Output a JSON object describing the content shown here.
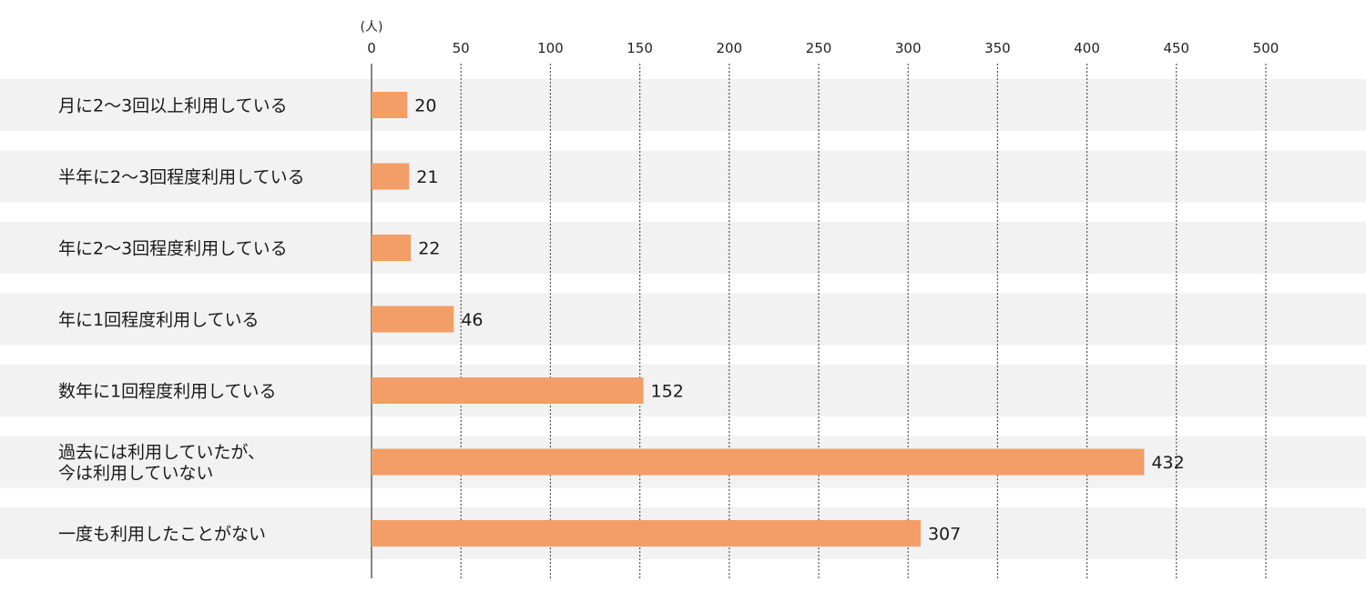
{
  "chart_data": {
    "type": "bar",
    "orientation": "horizontal",
    "unit_label": "(人)",
    "xlim": [
      0,
      500
    ],
    "ticks": [
      0,
      50,
      100,
      150,
      200,
      250,
      300,
      350,
      400,
      450,
      500
    ],
    "grid": true,
    "categories": [
      "月に2〜3回以上利用している",
      "半年に2〜3回程度利用している",
      "年に2〜3回程度利用している",
      "年に1回程度利用している",
      "数年に1回程度利用している",
      "過去には利用していたが、\n今は利用していない",
      "一度も利用したことがない"
    ],
    "values": [
      20,
      21,
      22,
      46,
      152,
      432,
      307
    ],
    "colors": {
      "bar": "#f29e66",
      "band": "#f2f2f2"
    }
  }
}
